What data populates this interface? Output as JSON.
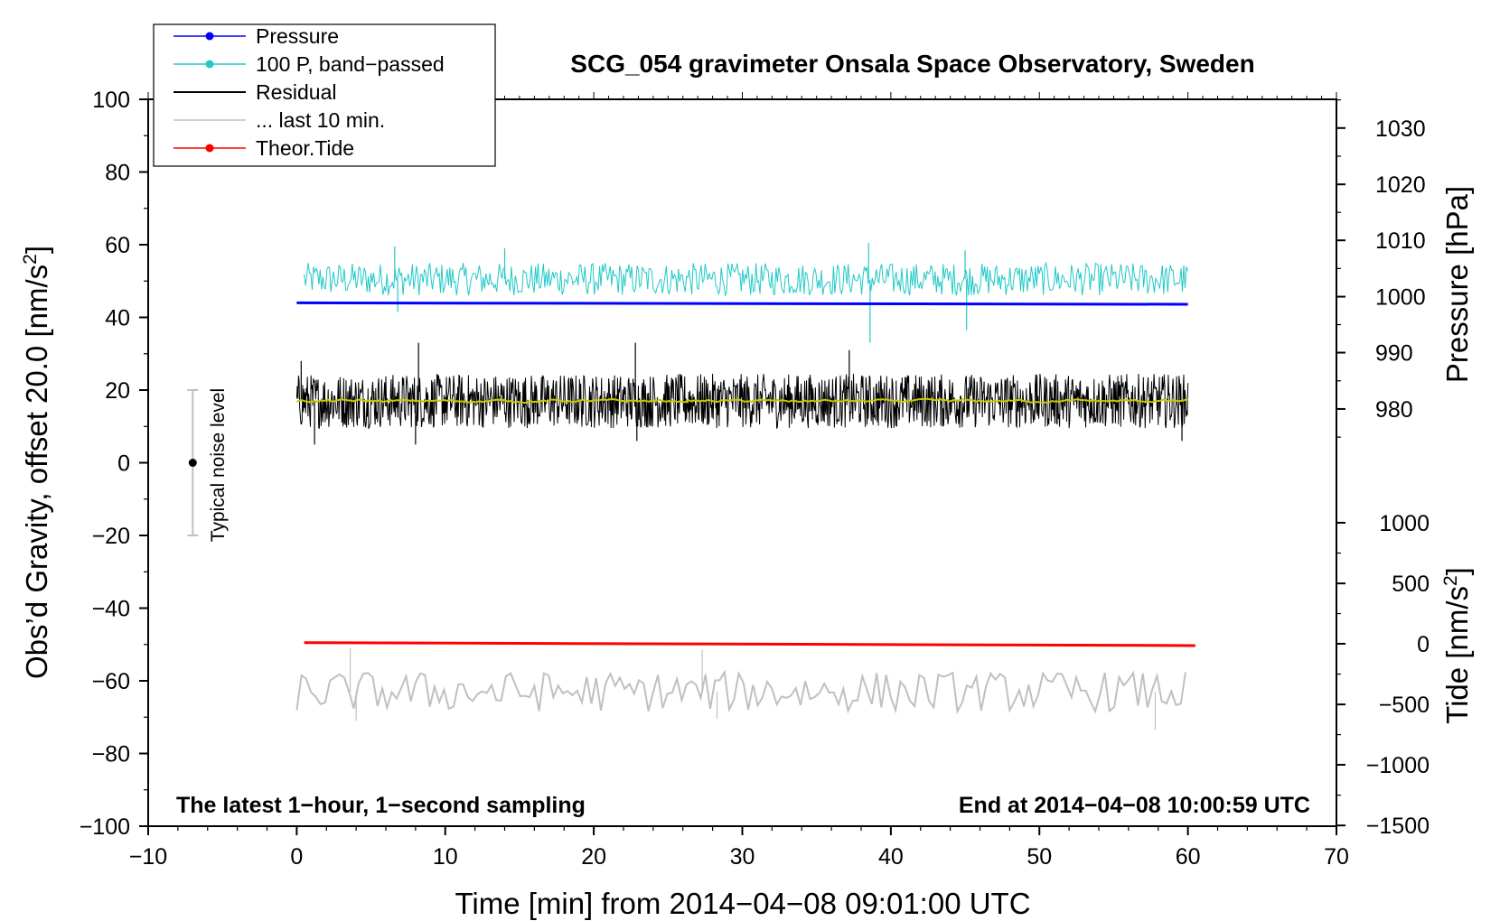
{
  "chart_data": {
    "type": "line",
    "title": "SCG_054 gravimeter Onsala Space Observatory, Sweden",
    "xlabel": "Time [min] from 2014−04−08 09:01:00 UTC",
    "ylabel_left": "Obs’d Gravity, offset 20.0 [nm/s",
    "ylabel_left_sup": "2",
    "ylabel_left_end": "]",
    "ylabel_pressure": "Pressure [hPa]",
    "ylabel_tide": "Tide [nm/s",
    "ylabel_tide_sup": "2",
    "ylabel_tide_end": "]",
    "xlim": [
      -10,
      70
    ],
    "ylim": [
      -100,
      100
    ],
    "x_ticks": [
      -10,
      0,
      10,
      20,
      30,
      40,
      50,
      60,
      70
    ],
    "x_tick_labels": [
      "−10",
      "0",
      "10",
      "20",
      "30",
      "40",
      "50",
      "60",
      "70"
    ],
    "y_ticks": [
      100,
      80,
      60,
      40,
      20,
      0,
      -20,
      -40,
      -60,
      -80,
      -100
    ],
    "y_tick_labels": [
      "100",
      "80",
      "60",
      "40",
      "20",
      "0",
      "−20",
      "−40",
      "−60",
      "−80",
      "−100"
    ],
    "pressure_axis": {
      "ticks": [
        1030,
        1020,
        1010,
        1000,
        990,
        980
      ],
      "tick_labels": [
        "1030",
        "1020",
        "1010",
        "1000",
        "990",
        "980"
      ],
      "left_equiv": [
        92.1,
        76.6,
        61.2,
        45.7,
        30.3,
        14.8
      ]
    },
    "tide_axis": {
      "ticks": [
        1000,
        500,
        0,
        -500,
        -1000,
        -1500
      ],
      "tick_labels": [
        "1000",
        "500",
        "0",
        "−500",
        "−1000",
        "−1500"
      ],
      "left_equiv": [
        -16.5,
        -33.2,
        -49.8,
        -66.5,
        -83.1,
        -99.8
      ]
    },
    "legend": {
      "position": "top-left",
      "entries": [
        {
          "label": "Pressure",
          "color": "#0000ff",
          "marker": true
        },
        {
          "label": "100 P, band−passed",
          "color": "#22c8c8",
          "marker": true
        },
        {
          "label": "Residual",
          "color": "#000000",
          "marker": false
        },
        {
          "label": "... last 10 min.",
          "color": "#c0c0c0",
          "marker": false
        },
        {
          "label": "Theor.Tide",
          "color": "#ff0000",
          "marker": true
        }
      ]
    },
    "annotation_left": "The latest 1−hour, 1−second sampling",
    "annotation_right": "End at 2014−04−08 10:00:59 UTC",
    "noise_label": "Typical noise level",
    "noise_bar": {
      "x": -7,
      "center": 0,
      "low": -20,
      "high": 20
    },
    "series": [
      {
        "name": "Pressure",
        "color": "#0000ff",
        "x_range": [
          0,
          60
        ],
        "start": 44.0,
        "end": 43.6,
        "width": 3
      },
      {
        "name": "100 P, band−passed",
        "color": "#22c8c8",
        "x_range": [
          0.5,
          60
        ],
        "center": 50.5,
        "amplitude": 4.5,
        "spikes": [
          [
            6.6,
            59.5
          ],
          [
            6.8,
            41.5
          ],
          [
            14.0,
            59.0
          ],
          [
            38.5,
            60.5
          ],
          [
            38.6,
            33.0
          ],
          [
            45.0,
            58.5
          ],
          [
            45.1,
            36.5
          ]
        ]
      },
      {
        "name": "Residual",
        "color": "#000000",
        "x_range": [
          0,
          60
        ],
        "center": 17.0,
        "amplitude": 7.5,
        "spikes": [
          [
            8.2,
            33.0
          ],
          [
            8.0,
            5.0
          ],
          [
            22.8,
            33.0
          ],
          [
            22.9,
            6.0
          ],
          [
            1.2,
            5.0
          ],
          [
            37.2,
            31.0
          ],
          [
            59.6,
            6.0
          ],
          [
            0.3,
            28.0
          ]
        ]
      },
      {
        "name": "Residual (smoothed)",
        "color": "#c8c800",
        "x_range": [
          0,
          60
        ],
        "center": 17.0,
        "amplitude": 1.0
      },
      {
        "name": "... last 10 min.",
        "color": "#c0c0c0",
        "x_range": [
          0,
          60
        ],
        "center": -63.0,
        "amplitude": 5.5,
        "spikes": [
          [
            3.6,
            -51.0
          ],
          [
            4.0,
            -71.0
          ],
          [
            27.3,
            -51.5
          ],
          [
            57.8,
            -73.5
          ],
          [
            28.3,
            -70.5
          ]
        ]
      },
      {
        "name": "Theor.Tide",
        "color": "#ff0000",
        "x_range": [
          0.5,
          60.5
        ],
        "start": -49.5,
        "end": -50.3,
        "width": 3
      }
    ]
  }
}
